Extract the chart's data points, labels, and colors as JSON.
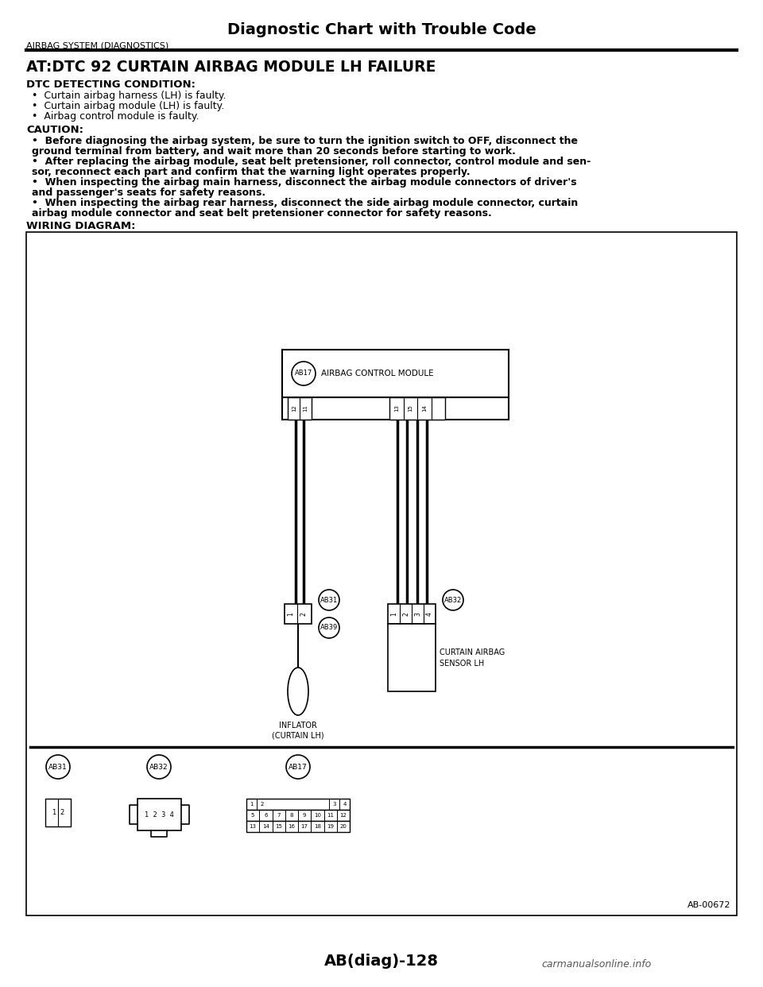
{
  "page_title": "Diagnostic Chart with Trouble Code",
  "section_header": "AIRBAG SYSTEM (DIAGNOSTICS)",
  "main_heading": "AT:DTC 92 CURTAIN AIRBAG MODULE LH FAILURE",
  "dtc_label": "DTC DETECTING CONDITION:",
  "dtc_bullets": [
    "Curtain airbag harness (LH) is faulty.",
    "Curtain airbag module (LH) is faulty.",
    "Airbag control module is faulty."
  ],
  "caution_label": "CAUTION:",
  "caution_texts": [
    "Before diagnosing the airbag system, be sure to turn the ignition switch to OFF, disconnect the ground terminal from battery, and wait more than 20 seconds before starting to work.",
    "After replacing the airbag module, seat belt pretensioner, roll connector, control module and sen-\nsor, reconnect each part and confirm that the warning light operates properly.",
    "When inspecting the airbag main harness, disconnect the airbag module connectors of driver's\nand passenger's seats for safety reasons.",
    "When inspecting the airbag rear harness, disconnect the side airbag module connector, curtain\nairbag module connector and seat belt pretensioner connector for safety reasons."
  ],
  "wiring_label": "WIRING DIAGRAM:",
  "footer_page": "AB(diag)-128",
  "footer_ref": "AB-00672",
  "bg_color": "#ffffff",
  "text_color": "#000000"
}
